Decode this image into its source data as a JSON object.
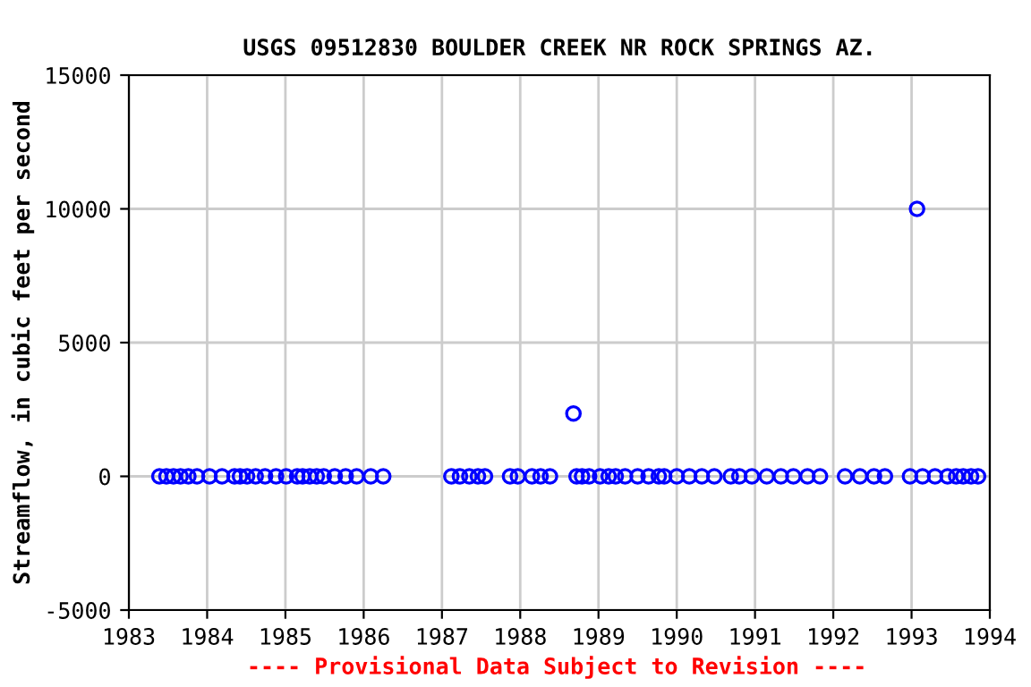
{
  "chart_data": {
    "type": "scatter",
    "title": "USGS 09512830 BOULDER CREEK NR ROCK SPRINGS AZ.",
    "ylabel": "Streamflow, in cubic feet per second",
    "annotations": [
      "---- Provisional Data Subject to Revision ----"
    ],
    "x": [
      1983.39,
      1983.48,
      1983.57,
      1983.66,
      1983.76,
      1983.87,
      1984.03,
      1984.19,
      1984.35,
      1984.42,
      1984.51,
      1984.62,
      1984.74,
      1984.88,
      1985.01,
      1985.15,
      1985.22,
      1985.31,
      1985.4,
      1985.49,
      1985.63,
      1985.77,
      1985.91,
      1986.09,
      1986.25,
      1987.12,
      1987.23,
      1987.35,
      1987.46,
      1987.55,
      1987.87,
      1987.97,
      1988.15,
      1988.26,
      1988.38,
      1988.68,
      1988.72,
      1988.79,
      1988.88,
      1989.02,
      1989.13,
      1989.22,
      1989.34,
      1989.5,
      1989.64,
      1989.77,
      1989.84,
      1990.0,
      1990.16,
      1990.32,
      1990.48,
      1990.69,
      1990.8,
      1990.96,
      1991.15,
      1991.33,
      1991.49,
      1991.67,
      1991.83,
      1992.15,
      1992.34,
      1992.52,
      1992.66,
      1992.98,
      1993.07,
      1993.14,
      1993.3,
      1993.46,
      1993.57,
      1993.66,
      1993.76,
      1993.85
    ],
    "series": [
      {
        "color": "#0000ff",
        "values": [
          0,
          0,
          0,
          0,
          0,
          0,
          0,
          0,
          0,
          0,
          0,
          0,
          0,
          0,
          0,
          0,
          0,
          0,
          0,
          0,
          0,
          0,
          0,
          0,
          0,
          0,
          0,
          0,
          0,
          0,
          0,
          0,
          0,
          0,
          0,
          2350,
          0,
          0,
          0,
          0,
          0,
          0,
          0,
          0,
          0,
          0,
          0,
          0,
          0,
          0,
          0,
          0,
          0,
          0,
          0,
          0,
          0,
          0,
          0,
          0,
          0,
          0,
          0,
          0,
          10000,
          0,
          0,
          0,
          0,
          0,
          0,
          0
        ]
      }
    ],
    "marker": "circle",
    "grid": true,
    "xlim": [
      1983,
      1994
    ],
    "xticks": [
      1983,
      1984,
      1985,
      1986,
      1987,
      1988,
      1989,
      1990,
      1991,
      1992,
      1993,
      1994
    ],
    "ylim": [
      -5000,
      15000
    ],
    "yticks": [
      -5000,
      0,
      5000,
      10000,
      15000
    ]
  }
}
